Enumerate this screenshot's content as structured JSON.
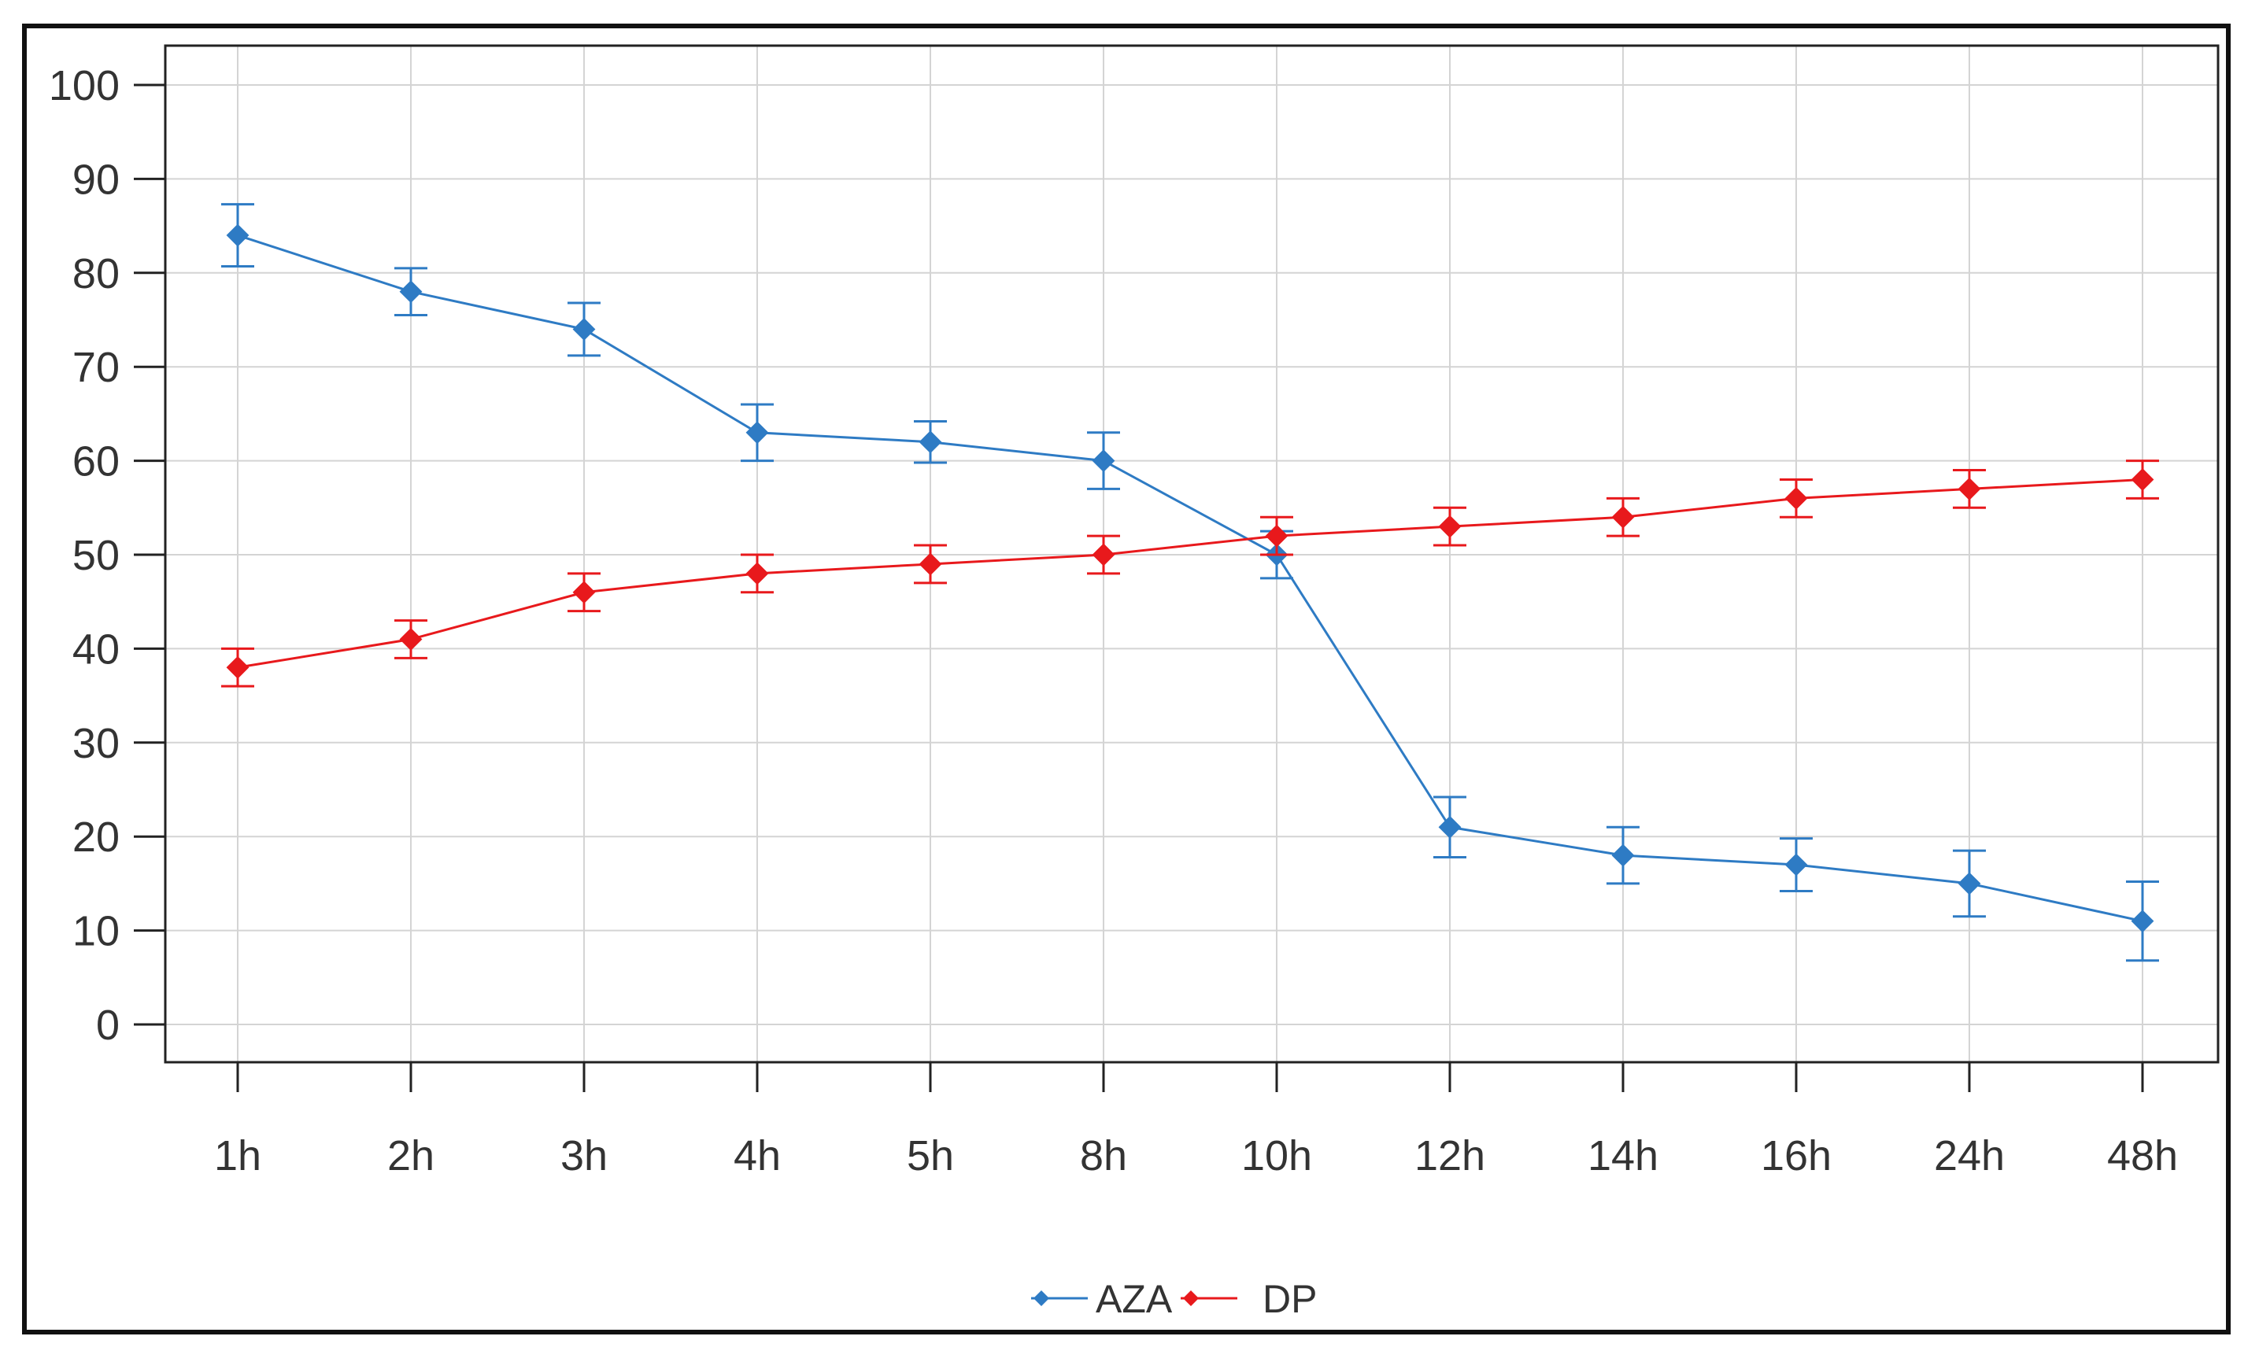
{
  "chart_data": {
    "type": "line",
    "title": "",
    "xlabel": "",
    "ylabel": "",
    "categories": [
      "1h",
      "2h",
      "3h",
      "4h",
      "5h",
      "8h",
      "10h",
      "12h",
      "14h",
      "16h",
      "24h",
      "48h"
    ],
    "ylim": [
      0,
      100
    ],
    "yticks": [
      "0",
      "10",
      "20",
      "30",
      "40",
      "50",
      "60",
      "70",
      "80",
      "90",
      "100"
    ],
    "grid": true,
    "legend_position": "bottom-center",
    "series": [
      {
        "name": "AZA",
        "color": "#2e7bc4",
        "values": [
          84,
          78,
          74,
          63,
          62,
          60,
          50,
          21,
          18,
          17,
          15,
          11
        ],
        "error": [
          3.3,
          2.5,
          2.8,
          3.0,
          2.2,
          3.0,
          2.5,
          3.2,
          3.0,
          2.8,
          3.5,
          4.2
        ]
      },
      {
        "name": "DP",
        "color": "#e8191c",
        "values": [
          38,
          41,
          46,
          48,
          49,
          50,
          52,
          53,
          54,
          56,
          57,
          58
        ],
        "error": [
          2.0,
          2.0,
          2.0,
          2.0,
          2.0,
          2.0,
          2.0,
          2.0,
          2.0,
          2.0,
          2.0,
          2.0
        ]
      }
    ]
  }
}
